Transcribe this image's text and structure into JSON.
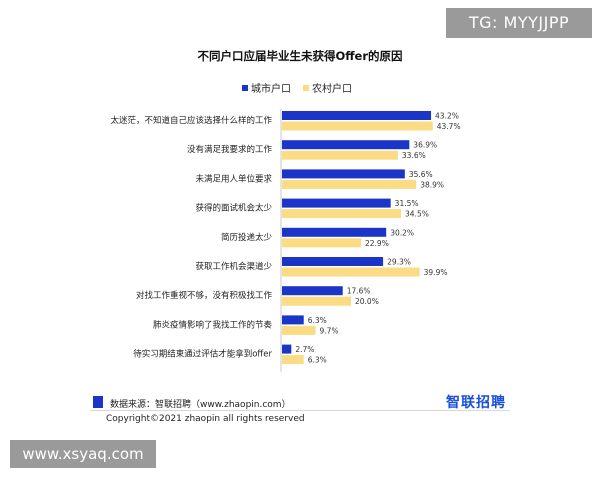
{
  "watermarks": {
    "top_right": "TG: MYYJJPP",
    "bottom_left": "www.xsyaq.com"
  },
  "colors": {
    "urban": "#1a35c8",
    "rural": "#fbdc85"
  },
  "chart_data": {
    "type": "bar",
    "orientation": "horizontal",
    "title": "不同户口应届毕业生未获得Offer的原因",
    "categories": [
      "太迷茫，不知道自己应该选择什么样的工作",
      "没有满足我要求的工作",
      "未满足用人单位要求",
      "获得的面试机会太少",
      "简历投递太少",
      "获取工作机会渠道少",
      "对找工作重视不够，没有积极找工作",
      "肺炎疫情影响了我找工作的节奏",
      "待实习期结束通过评估才能拿到offer"
    ],
    "series": [
      {
        "name": "城市户口",
        "values": [
          43.2,
          36.9,
          35.6,
          31.5,
          30.2,
          29.3,
          17.6,
          6.3,
          2.7
        ]
      },
      {
        "name": "农村户口",
        "values": [
          43.7,
          33.6,
          38.9,
          34.5,
          22.9,
          39.9,
          20.0,
          9.7,
          6.3
        ]
      }
    ],
    "value_format": "%",
    "legend_position": "top",
    "grid": false
  },
  "footer": {
    "source": "数据来源：智联招聘（www.zhaopin.com）",
    "copyright": "Copyright©2021 zhaopin all rights reserved",
    "brand": "智联招聘"
  }
}
